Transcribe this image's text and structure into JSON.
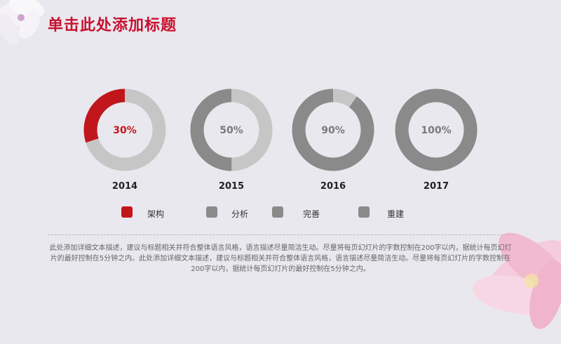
{
  "title": "单击此处添加标题",
  "colors": {
    "accent": "#c0161c",
    "gray": "#8a8a8a",
    "light_gray": "#c6c6c6",
    "pink": "#f3bcd2"
  },
  "chart_data": {
    "type": "pie",
    "subtype": "donut",
    "items": [
      {
        "year": "2014",
        "value": 30,
        "label": "30%",
        "highlight": true
      },
      {
        "year": "2015",
        "value": 50,
        "label": "50%",
        "highlight": false
      },
      {
        "year": "2016",
        "value": 90,
        "label": "90%",
        "highlight": false
      },
      {
        "year": "2017",
        "value": 100,
        "label": "100%",
        "highlight": false
      }
    ]
  },
  "legend": [
    {
      "label": "架构",
      "color": "#c0161c"
    },
    {
      "label": "分析",
      "color": "#8a8a8a"
    },
    {
      "label": "完善",
      "color": "#8a8a8a"
    },
    {
      "label": "重建",
      "color": "#8a8a8a"
    }
  ],
  "paragraph": "此处添加详细文本描述，建议与标题相关并符合整体语言风格，语言描述尽量简洁生动。尽量将每页幻灯片的字数控制在200字以内，据统计每页幻灯片的最好控制在5分钟之内。此处添加详细文本描述，建议与标题相关并符合整体语言风格，语言描述尽量简洁生动。尽量将每页幻灯片的字数控制在200字以内，据统计每页幻灯片的最好控制在5分钟之内。"
}
